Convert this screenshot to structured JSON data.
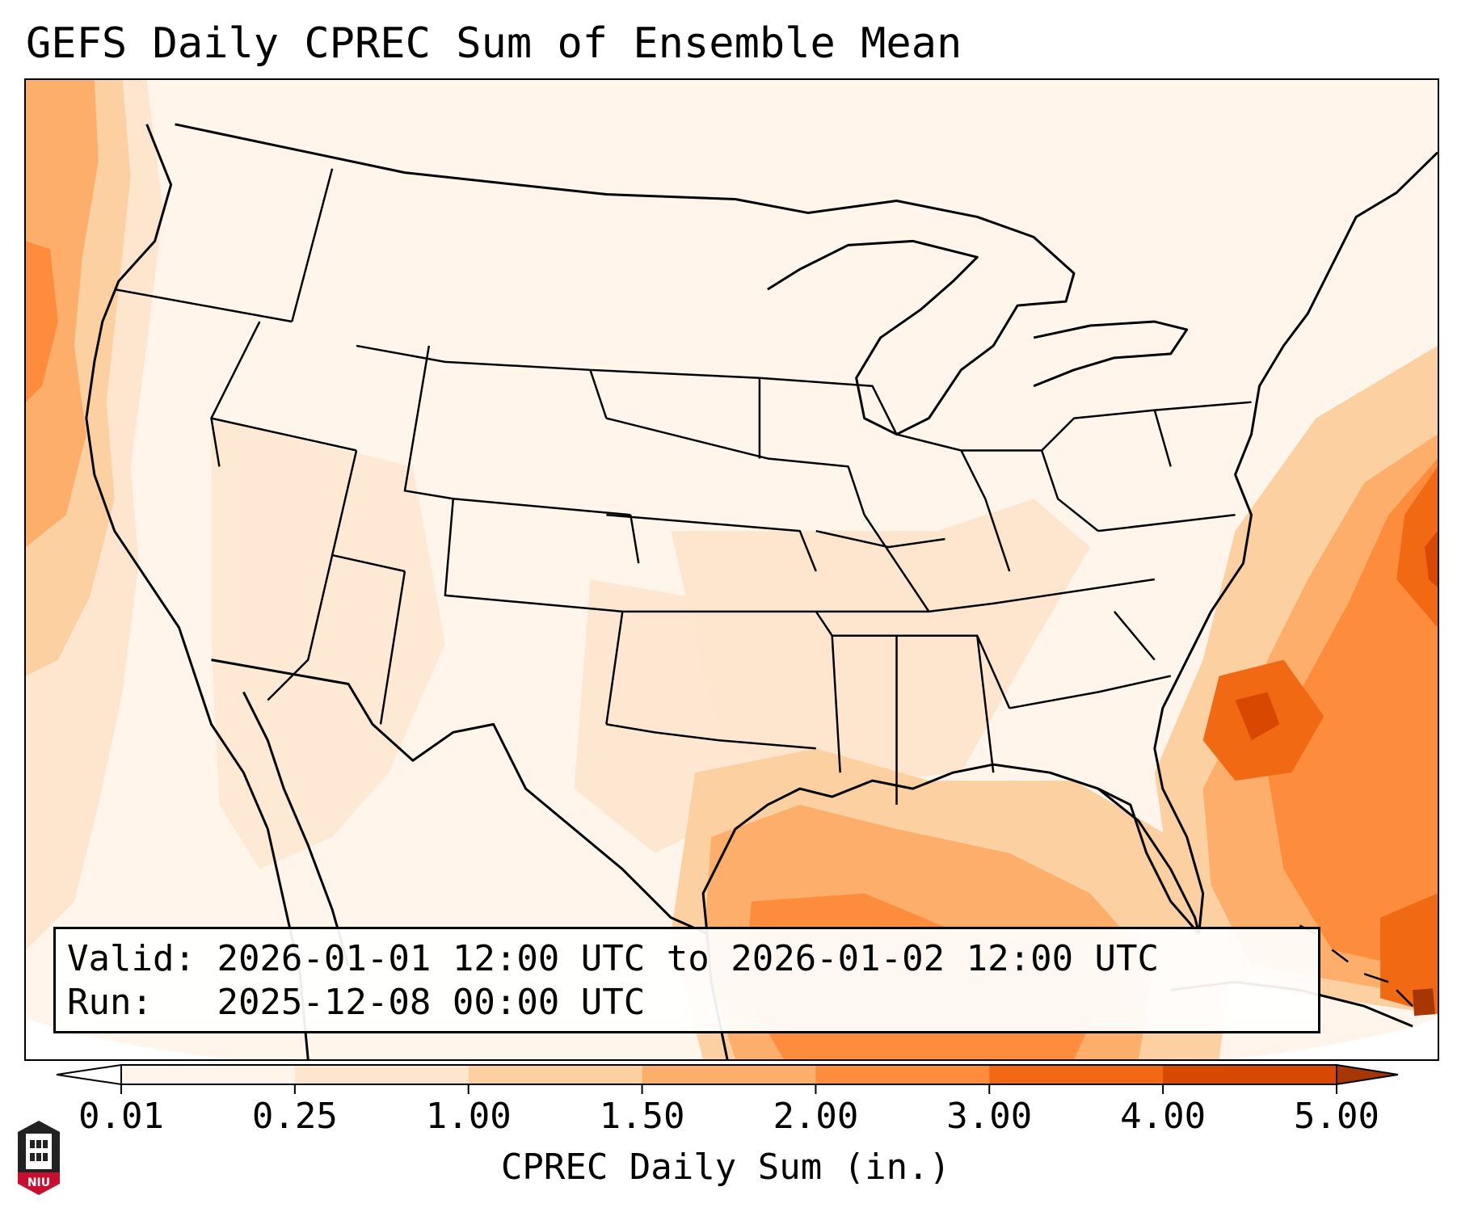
{
  "title": "GEFS Daily CPREC Sum of Ensemble Mean",
  "info": {
    "valid_label": "Valid:",
    "valid_value": "2026-01-01 12:00 UTC to 2026-01-02 12:00 UTC",
    "run_label": "Run:",
    "run_value": "2025-12-08 00:00 UTC"
  },
  "colorbar": {
    "label": "CPREC Daily Sum (in.)",
    "ticks": [
      "0.01",
      "0.25",
      "1.00",
      "1.50",
      "2.00",
      "3.00",
      "4.00",
      "5.00"
    ],
    "colors": [
      "#fff5eb",
      "#fee6ce",
      "#fdd0a2",
      "#fdae6b",
      "#fd8d3c",
      "#f16913",
      "#d94801"
    ],
    "under_color": "#ffffff",
    "over_color": "#a63603",
    "extend": "both"
  },
  "logo": {
    "text": "NIU",
    "colors": {
      "primary": "#c8102e",
      "dark": "#222222"
    }
  },
  "map": {
    "projection": "lambert-conformal",
    "region": "CONUS",
    "precip_colors": {
      "trace": "#fff5eb",
      "light": "#fee6ce",
      "moderate": "#fdd0a2",
      "heavy": "#fdae6b",
      "very_heavy": "#fd8d3c",
      "extreme": "#f16913",
      "peak": "#d94801"
    },
    "border_color": "#000000"
  }
}
